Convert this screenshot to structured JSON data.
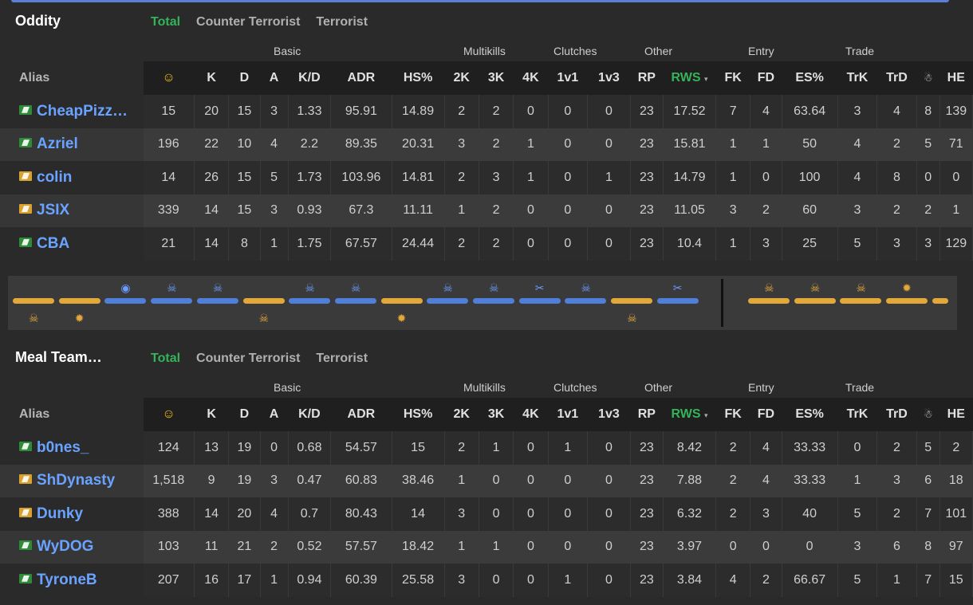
{
  "header_cols": [
    "☺",
    "K",
    "D",
    "A",
    "K/D",
    "ADR",
    "HS%",
    "2K",
    "3K",
    "4K",
    "1v1",
    "1v3",
    "RP",
    "RWS",
    "FK",
    "FD",
    "ES%",
    "TrK",
    "TrD",
    "☃",
    "HE"
  ],
  "groups": [
    "Basic",
    "Multikills",
    "Clutches",
    "Other",
    "Entry",
    "Trade"
  ],
  "alias_label": "Alias",
  "tabs": [
    "Total",
    "Counter Terrorist",
    "Terrorist"
  ],
  "team1": {
    "name": "Oddity",
    "rows": [
      {
        "side": "ct",
        "alias": "CheapPizz…",
        "v": [
          "15",
          "20",
          "15",
          "3",
          "1.33",
          "95.91",
          "14.89",
          "2",
          "2",
          "0",
          "0",
          "0",
          "23",
          "17.52",
          "7",
          "4",
          "63.64",
          "3",
          "4",
          "8",
          "139"
        ]
      },
      {
        "side": "ct",
        "alias": "Azriel",
        "v": [
          "196",
          "22",
          "10",
          "4",
          "2.2",
          "89.35",
          "20.31",
          "3",
          "2",
          "1",
          "0",
          "0",
          "23",
          "15.81",
          "1",
          "1",
          "50",
          "4",
          "2",
          "5",
          "71"
        ]
      },
      {
        "side": "t",
        "alias": "colin",
        "v": [
          "14",
          "26",
          "15",
          "5",
          "1.73",
          "103.96",
          "14.81",
          "2",
          "3",
          "1",
          "0",
          "1",
          "23",
          "14.79",
          "1",
          "0",
          "100",
          "4",
          "8",
          "0",
          "0"
        ]
      },
      {
        "side": "t",
        "alias": "JSIX",
        "v": [
          "339",
          "14",
          "15",
          "3",
          "0.93",
          "67.3",
          "11.11",
          "1",
          "2",
          "0",
          "0",
          "0",
          "23",
          "11.05",
          "3",
          "2",
          "60",
          "3",
          "2",
          "2",
          "1"
        ]
      },
      {
        "side": "ct",
        "alias": "CBA",
        "v": [
          "21",
          "14",
          "8",
          "1",
          "1.75",
          "67.57",
          "24.44",
          "2",
          "2",
          "0",
          "0",
          "0",
          "23",
          "10.4",
          "1",
          "3",
          "25",
          "5",
          "3",
          "3",
          "129"
        ]
      }
    ]
  },
  "team2": {
    "name": "Meal Team…",
    "rows": [
      {
        "side": "ct",
        "alias": "b0nes_",
        "v": [
          "124",
          "13",
          "19",
          "0",
          "0.68",
          "54.57",
          "15",
          "2",
          "1",
          "0",
          "1",
          "0",
          "23",
          "8.42",
          "2",
          "4",
          "33.33",
          "0",
          "2",
          "5",
          "2"
        ]
      },
      {
        "side": "t",
        "alias": "ShDynasty",
        "v": [
          "1,518",
          "9",
          "19",
          "3",
          "0.47",
          "60.83",
          "38.46",
          "1",
          "0",
          "0",
          "0",
          "0",
          "23",
          "7.88",
          "2",
          "4",
          "33.33",
          "1",
          "3",
          "6",
          "18"
        ]
      },
      {
        "side": "t",
        "alias": "Dunky",
        "v": [
          "388",
          "14",
          "20",
          "4",
          "0.7",
          "80.43",
          "14",
          "3",
          "0",
          "0",
          "0",
          "0",
          "23",
          "6.32",
          "2",
          "3",
          "40",
          "5",
          "2",
          "7",
          "101"
        ]
      },
      {
        "side": "ct",
        "alias": "WyDOG",
        "v": [
          "103",
          "11",
          "21",
          "2",
          "0.52",
          "57.57",
          "18.42",
          "1",
          "1",
          "0",
          "0",
          "0",
          "23",
          "3.97",
          "0",
          "0",
          "0",
          "3",
          "6",
          "8",
          "97"
        ]
      },
      {
        "side": "ct",
        "alias": "TyroneB",
        "v": [
          "207",
          "16",
          "17",
          "1",
          "0.94",
          "60.39",
          "25.58",
          "3",
          "0",
          "0",
          "1",
          "0",
          "23",
          "3.84",
          "4",
          "2",
          "66.67",
          "5",
          "1",
          "7",
          "15"
        ]
      }
    ]
  },
  "rounds": [
    {
      "w": "t",
      "icon": "skull-icon",
      "glyph": "☠",
      "pos": "bottom"
    },
    {
      "w": "t",
      "icon": "explosion-icon",
      "glyph": "✹",
      "pos": "bottom"
    },
    {
      "w": "ct",
      "icon": "stopwatch-icon",
      "glyph": "◉",
      "pos": "top"
    },
    {
      "w": "ct",
      "icon": "skull-icon",
      "glyph": "☠",
      "pos": "top"
    },
    {
      "w": "ct",
      "icon": "skull-icon",
      "glyph": "☠",
      "pos": "top"
    },
    {
      "w": "t",
      "icon": "skull-icon",
      "glyph": "☠",
      "pos": "bottom"
    },
    {
      "w": "ct",
      "icon": "skull-icon",
      "glyph": "☠",
      "pos": "top"
    },
    {
      "w": "ct",
      "icon": "skull-icon",
      "glyph": "☠",
      "pos": "top"
    },
    {
      "w": "t",
      "icon": "explosion-icon",
      "glyph": "✹",
      "pos": "bottom"
    },
    {
      "w": "ct",
      "icon": "skull-icon",
      "glyph": "☠",
      "pos": "top"
    },
    {
      "w": "ct",
      "icon": "skull-icon",
      "glyph": "☠",
      "pos": "top"
    },
    {
      "w": "ct",
      "icon": "defuse-icon",
      "glyph": "✂",
      "pos": "top"
    },
    {
      "w": "ct",
      "icon": "skull-icon",
      "glyph": "☠",
      "pos": "top"
    },
    {
      "w": "t",
      "icon": "skull-icon",
      "glyph": "☠",
      "pos": "bottom"
    },
    {
      "w": "ct",
      "icon": "defuse-icon",
      "glyph": "✂",
      "pos": "top"
    },
    {
      "w": "t",
      "icon": "skull-icon",
      "glyph": "☠",
      "pos": "top"
    },
    {
      "w": "t",
      "icon": "skull-icon",
      "glyph": "☠",
      "pos": "top"
    },
    {
      "w": "t",
      "icon": "skull-icon",
      "glyph": "☠",
      "pos": "top"
    },
    {
      "w": "t",
      "icon": "explosion-icon",
      "glyph": "✹",
      "pos": "top"
    },
    {
      "w": "t",
      "icon": "",
      "glyph": "",
      "pos": "top"
    }
  ],
  "colors": {
    "ct": "#4f7fd8",
    "t": "#e3a83a",
    "accent": "#35b35a",
    "alias": "#6aa3ff"
  }
}
